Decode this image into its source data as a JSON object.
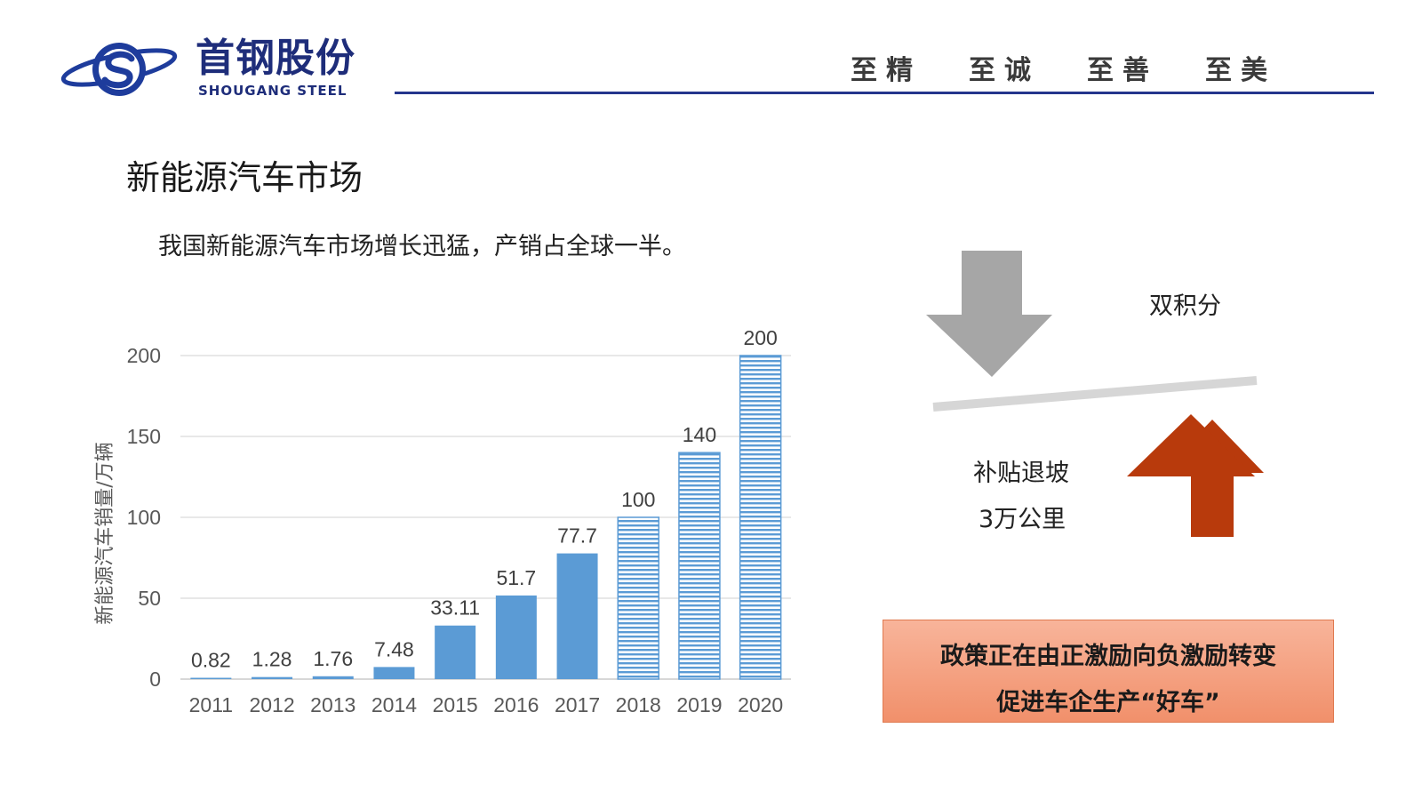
{
  "header": {
    "company_name_cn": "首钢股份",
    "company_name_en": "SHOUGANG STEEL",
    "mottos": [
      "至精",
      "至诚",
      "至善",
      "至美"
    ]
  },
  "slide": {
    "title": "新能源汽车市场",
    "subtitle": "我国新能源汽车市场增长迅猛，产销占全球一半。"
  },
  "diagram": {
    "top_label": "双积分",
    "bottom_label_1": "补贴退坡",
    "bottom_label_2": "3万公里"
  },
  "policy_box": {
    "line1": "政策正在由正激励向负激励转变",
    "line2": "促进车企生产“好车”"
  },
  "colors": {
    "brand_blue": "#24358c",
    "bar_blue": "#5b9bd5",
    "arrow_gray": "#a6a6a6",
    "arrow_red": "#b83a0c",
    "policy_fill": "#f4a584"
  },
  "chart_data": {
    "type": "bar",
    "categories": [
      "2011",
      "2012",
      "2013",
      "2014",
      "2015",
      "2016",
      "2017",
      "2018",
      "2019",
      "2020"
    ],
    "values": [
      0.82,
      1.28,
      1.76,
      7.48,
      33.11,
      51.7,
      77.7,
      100,
      140,
      200
    ],
    "data_labels": [
      "0.82",
      "1.28",
      "1.76",
      "7.48",
      "33.11",
      "51.7",
      "77.7",
      "100",
      "140",
      "200"
    ],
    "projected_from_index": 7,
    "ylabel": "新能源汽车销量/万辆",
    "xlabel": "",
    "title": "",
    "ylim": [
      0,
      200
    ],
    "yticks": [
      0,
      50,
      100,
      150,
      200
    ],
    "grid": true,
    "legend": "none"
  }
}
